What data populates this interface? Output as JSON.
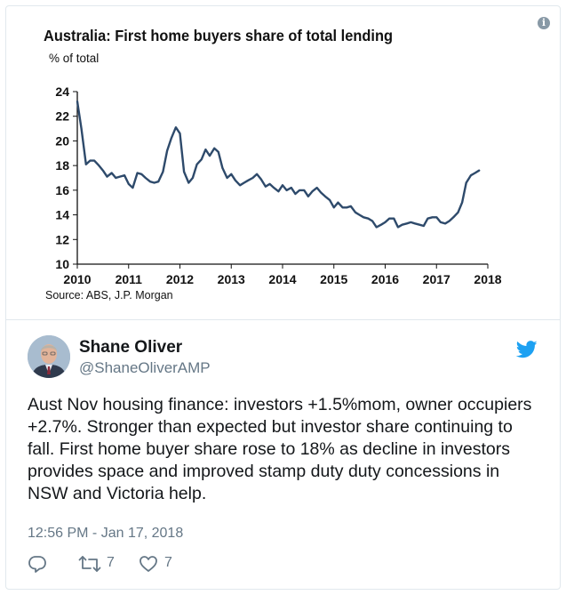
{
  "chart_data": {
    "type": "line",
    "title": "Australia: First home buyers share of total lending",
    "ylabel": "% of total",
    "xlabel": "",
    "source": "Source: ABS, J.P. Morgan",
    "x_ticks": [
      "2010",
      "2011",
      "2012",
      "2013",
      "2014",
      "2015",
      "2016",
      "2017",
      "2018"
    ],
    "y_ticks": [
      "10",
      "12",
      "14",
      "16",
      "18",
      "20",
      "22",
      "24"
    ],
    "xlim": [
      2010,
      2018
    ],
    "ylim": [
      10,
      24
    ],
    "grid": false,
    "series": [
      {
        "name": "First home buyers share of total lending",
        "color": "#2e4a6b",
        "x": [
          2010.0,
          2010.08,
          2010.17,
          2010.25,
          2010.33,
          2010.42,
          2010.5,
          2010.58,
          2010.67,
          2010.75,
          2010.83,
          2010.92,
          2011.0,
          2011.08,
          2011.17,
          2011.25,
          2011.33,
          2011.42,
          2011.5,
          2011.58,
          2011.67,
          2011.75,
          2011.83,
          2011.92,
          2012.0,
          2012.08,
          2012.17,
          2012.25,
          2012.33,
          2012.42,
          2012.5,
          2012.58,
          2012.67,
          2012.75,
          2012.83,
          2012.92,
          2013.0,
          2013.08,
          2013.17,
          2013.25,
          2013.33,
          2013.42,
          2013.5,
          2013.58,
          2013.67,
          2013.75,
          2013.83,
          2013.92,
          2014.0,
          2014.08,
          2014.17,
          2014.25,
          2014.33,
          2014.42,
          2014.5,
          2014.58,
          2014.67,
          2014.75,
          2014.83,
          2014.92,
          2015.0,
          2015.08,
          2015.17,
          2015.25,
          2015.33,
          2015.42,
          2015.5,
          2015.58,
          2015.67,
          2015.75,
          2015.83,
          2015.92,
          2016.0,
          2016.08,
          2016.17,
          2016.25,
          2016.33,
          2016.42,
          2016.5,
          2016.58,
          2016.67,
          2016.75,
          2016.83,
          2016.92,
          2017.0,
          2017.08,
          2017.17,
          2017.25,
          2017.33,
          2017.42,
          2017.5,
          2017.58,
          2017.67,
          2017.75,
          2017.83
        ],
        "values": [
          23.2,
          21.0,
          18.1,
          18.4,
          18.4,
          18.0,
          17.6,
          17.1,
          17.4,
          17.0,
          17.1,
          17.2,
          16.5,
          16.2,
          17.4,
          17.3,
          17.0,
          16.7,
          16.6,
          16.7,
          17.5,
          19.2,
          20.2,
          21.1,
          20.6,
          17.5,
          16.6,
          17.0,
          18.1,
          18.5,
          19.3,
          18.8,
          19.4,
          19.1,
          17.8,
          17.0,
          17.3,
          16.8,
          16.4,
          16.6,
          16.8,
          17.0,
          17.3,
          16.9,
          16.3,
          16.5,
          16.2,
          15.9,
          16.4,
          16.0,
          16.2,
          15.7,
          16.0,
          16.0,
          15.5,
          15.9,
          16.2,
          15.8,
          15.5,
          15.2,
          14.6,
          15.0,
          14.6,
          14.6,
          14.7,
          14.2,
          14.0,
          13.8,
          13.7,
          13.5,
          13.0,
          13.2,
          13.4,
          13.7,
          13.7,
          13.0,
          13.2,
          13.3,
          13.4,
          13.3,
          13.2,
          13.1,
          13.7,
          13.8,
          13.8,
          13.4,
          13.3,
          13.5,
          13.8,
          14.2,
          15.0,
          16.6,
          17.2,
          17.4,
          17.6
        ]
      }
    ]
  },
  "tweet": {
    "author_name": "Shane Oliver",
    "author_handle": "@ShaneOliverAMP",
    "text": "Aust Nov housing finance: investors +1.5%mom, owner occupiers +2.7%.  Stronger than expected but investor share continuing to fall. First home buyer share rose to 18% as decline in investors provides space and improved stamp duty duty concessions in NSW and Victoria help.",
    "timestamp": "12:56 PM - Jan 17, 2018",
    "retweet_count": "7",
    "like_count": "7",
    "info_icon": "info-icon",
    "brand_icon": "twitter-bird-icon",
    "brand_color": "#1da1f2"
  }
}
